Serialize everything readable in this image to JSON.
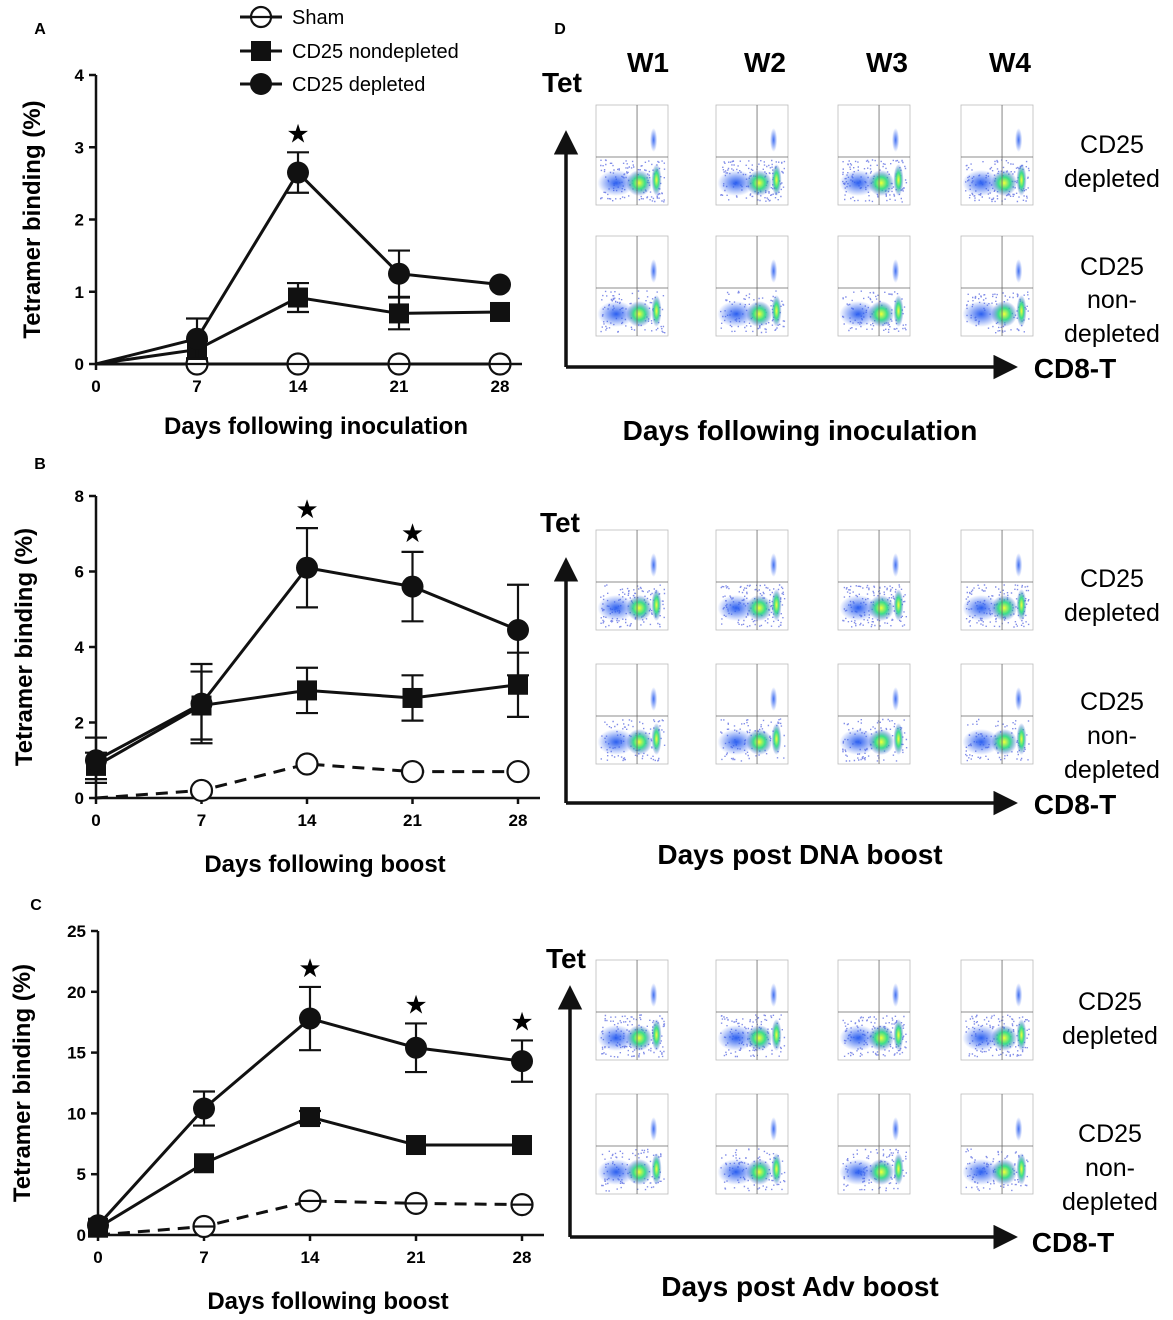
{
  "legend": {
    "sham": "Sham",
    "nondepleted": "CD25 nondepleted",
    "depleted": "CD25 depleted"
  },
  "colors": {
    "ink": "#111111",
    "plot_blue": "#1a2fd6",
    "plot_green": "#2fd67a",
    "plot_yellow": "#e8ff30"
  },
  "star_glyph": "★",
  "chart_data": [
    {
      "panel": "A",
      "type": "line",
      "xlabel": "Days following inoculation",
      "ylabel": "Tetramer binding (%)",
      "x": [
        0,
        7,
        14,
        21,
        28
      ],
      "xticks": [
        "0",
        "7",
        "14",
        "21",
        "28"
      ],
      "yticks": [
        "0",
        "1",
        "2",
        "3",
        "4"
      ],
      "ylim": [
        0,
        4
      ],
      "xlim": [
        0,
        28
      ],
      "significant_days": [
        14
      ],
      "series": [
        {
          "name": "CD25 depleted",
          "marker": "circle-filled",
          "dashed": false,
          "values": [
            0,
            0.35,
            2.65,
            1.25,
            1.1
          ],
          "error": [
            0,
            0.28,
            0.28,
            0.32,
            0
          ]
        },
        {
          "name": "CD25 nondepleted",
          "marker": "square-filled",
          "dashed": false,
          "values": [
            0,
            0.2,
            0.92,
            0.7,
            0.72
          ],
          "error": [
            0,
            0.12,
            0.2,
            0.22,
            0
          ]
        },
        {
          "name": "Sham",
          "marker": "circle-open",
          "dashed": false,
          "values": [
            0,
            0,
            0,
            0,
            0
          ],
          "error": [
            0,
            0,
            0,
            0,
            0
          ]
        }
      ]
    },
    {
      "panel": "B",
      "type": "line",
      "xlabel": "Days following boost",
      "ylabel": "Tetramer binding (%)",
      "x": [
        0,
        7,
        14,
        21,
        28
      ],
      "xticks": [
        "0",
        "7",
        "14",
        "21",
        "28"
      ],
      "yticks": [
        "0",
        "2",
        "4",
        "6",
        "8"
      ],
      "ylim": [
        0,
        8
      ],
      "xlim": [
        0,
        28
      ],
      "significant_days": [
        14,
        21
      ],
      "series": [
        {
          "name": "CD25 depleted",
          "marker": "circle-filled",
          "dashed": false,
          "values": [
            1.0,
            2.5,
            6.1,
            5.6,
            4.45
          ],
          "error": [
            0.6,
            1.05,
            1.05,
            0.92,
            1.2
          ]
        },
        {
          "name": "CD25 nondepleted",
          "marker": "square-filled",
          "dashed": false,
          "values": [
            0.85,
            2.45,
            2.85,
            2.65,
            3.0
          ],
          "error": [
            0.35,
            0.9,
            0.6,
            0.6,
            0.85
          ]
        },
        {
          "name": "Sham",
          "marker": "circle-open",
          "dashed": true,
          "values": [
            0,
            0.2,
            0.9,
            0.7,
            0.7
          ],
          "error": [
            0,
            0,
            0,
            0,
            0
          ]
        }
      ]
    },
    {
      "panel": "C",
      "type": "line",
      "xlabel": "Days following boost",
      "ylabel": "Tetramer binding (%)",
      "x": [
        0,
        7,
        14,
        21,
        28
      ],
      "xticks": [
        "0",
        "7",
        "14",
        "21",
        "28"
      ],
      "yticks": [
        "0",
        "5",
        "10",
        "15",
        "20",
        "25"
      ],
      "ylim": [
        0,
        25
      ],
      "xlim": [
        0,
        28
      ],
      "significant_days": [
        14,
        21,
        28
      ],
      "series": [
        {
          "name": "CD25 depleted",
          "marker": "circle-filled",
          "dashed": false,
          "values": [
            0.8,
            10.4,
            17.8,
            15.4,
            14.3
          ],
          "error": [
            0,
            1.4,
            2.6,
            2.0,
            1.7
          ]
        },
        {
          "name": "CD25 nondepleted",
          "marker": "square-filled",
          "dashed": false,
          "values": [
            0.6,
            5.9,
            9.7,
            7.4,
            7.4
          ],
          "error": [
            0,
            0,
            0.5,
            0,
            0
          ]
        },
        {
          "name": "Sham",
          "marker": "circle-open",
          "dashed": true,
          "values": [
            0,
            0.7,
            2.8,
            2.6,
            2.5
          ],
          "error": [
            0,
            0,
            0,
            0,
            0
          ]
        }
      ]
    }
  ],
  "panel_d": {
    "panel_label": "D",
    "columns": [
      "W1",
      "W2",
      "W3",
      "W4"
    ],
    "y_axis_label": "Tet",
    "x_axis_label": "CD8-T",
    "row_labels": {
      "depleted": [
        "CD25",
        "depleted"
      ],
      "nondepleted": [
        "CD25",
        "non-",
        "depleted"
      ]
    },
    "sections": [
      {
        "title": "Days following inoculation"
      },
      {
        "title": "Days post DNA boost"
      },
      {
        "title": "Days post Adv boost"
      }
    ]
  }
}
